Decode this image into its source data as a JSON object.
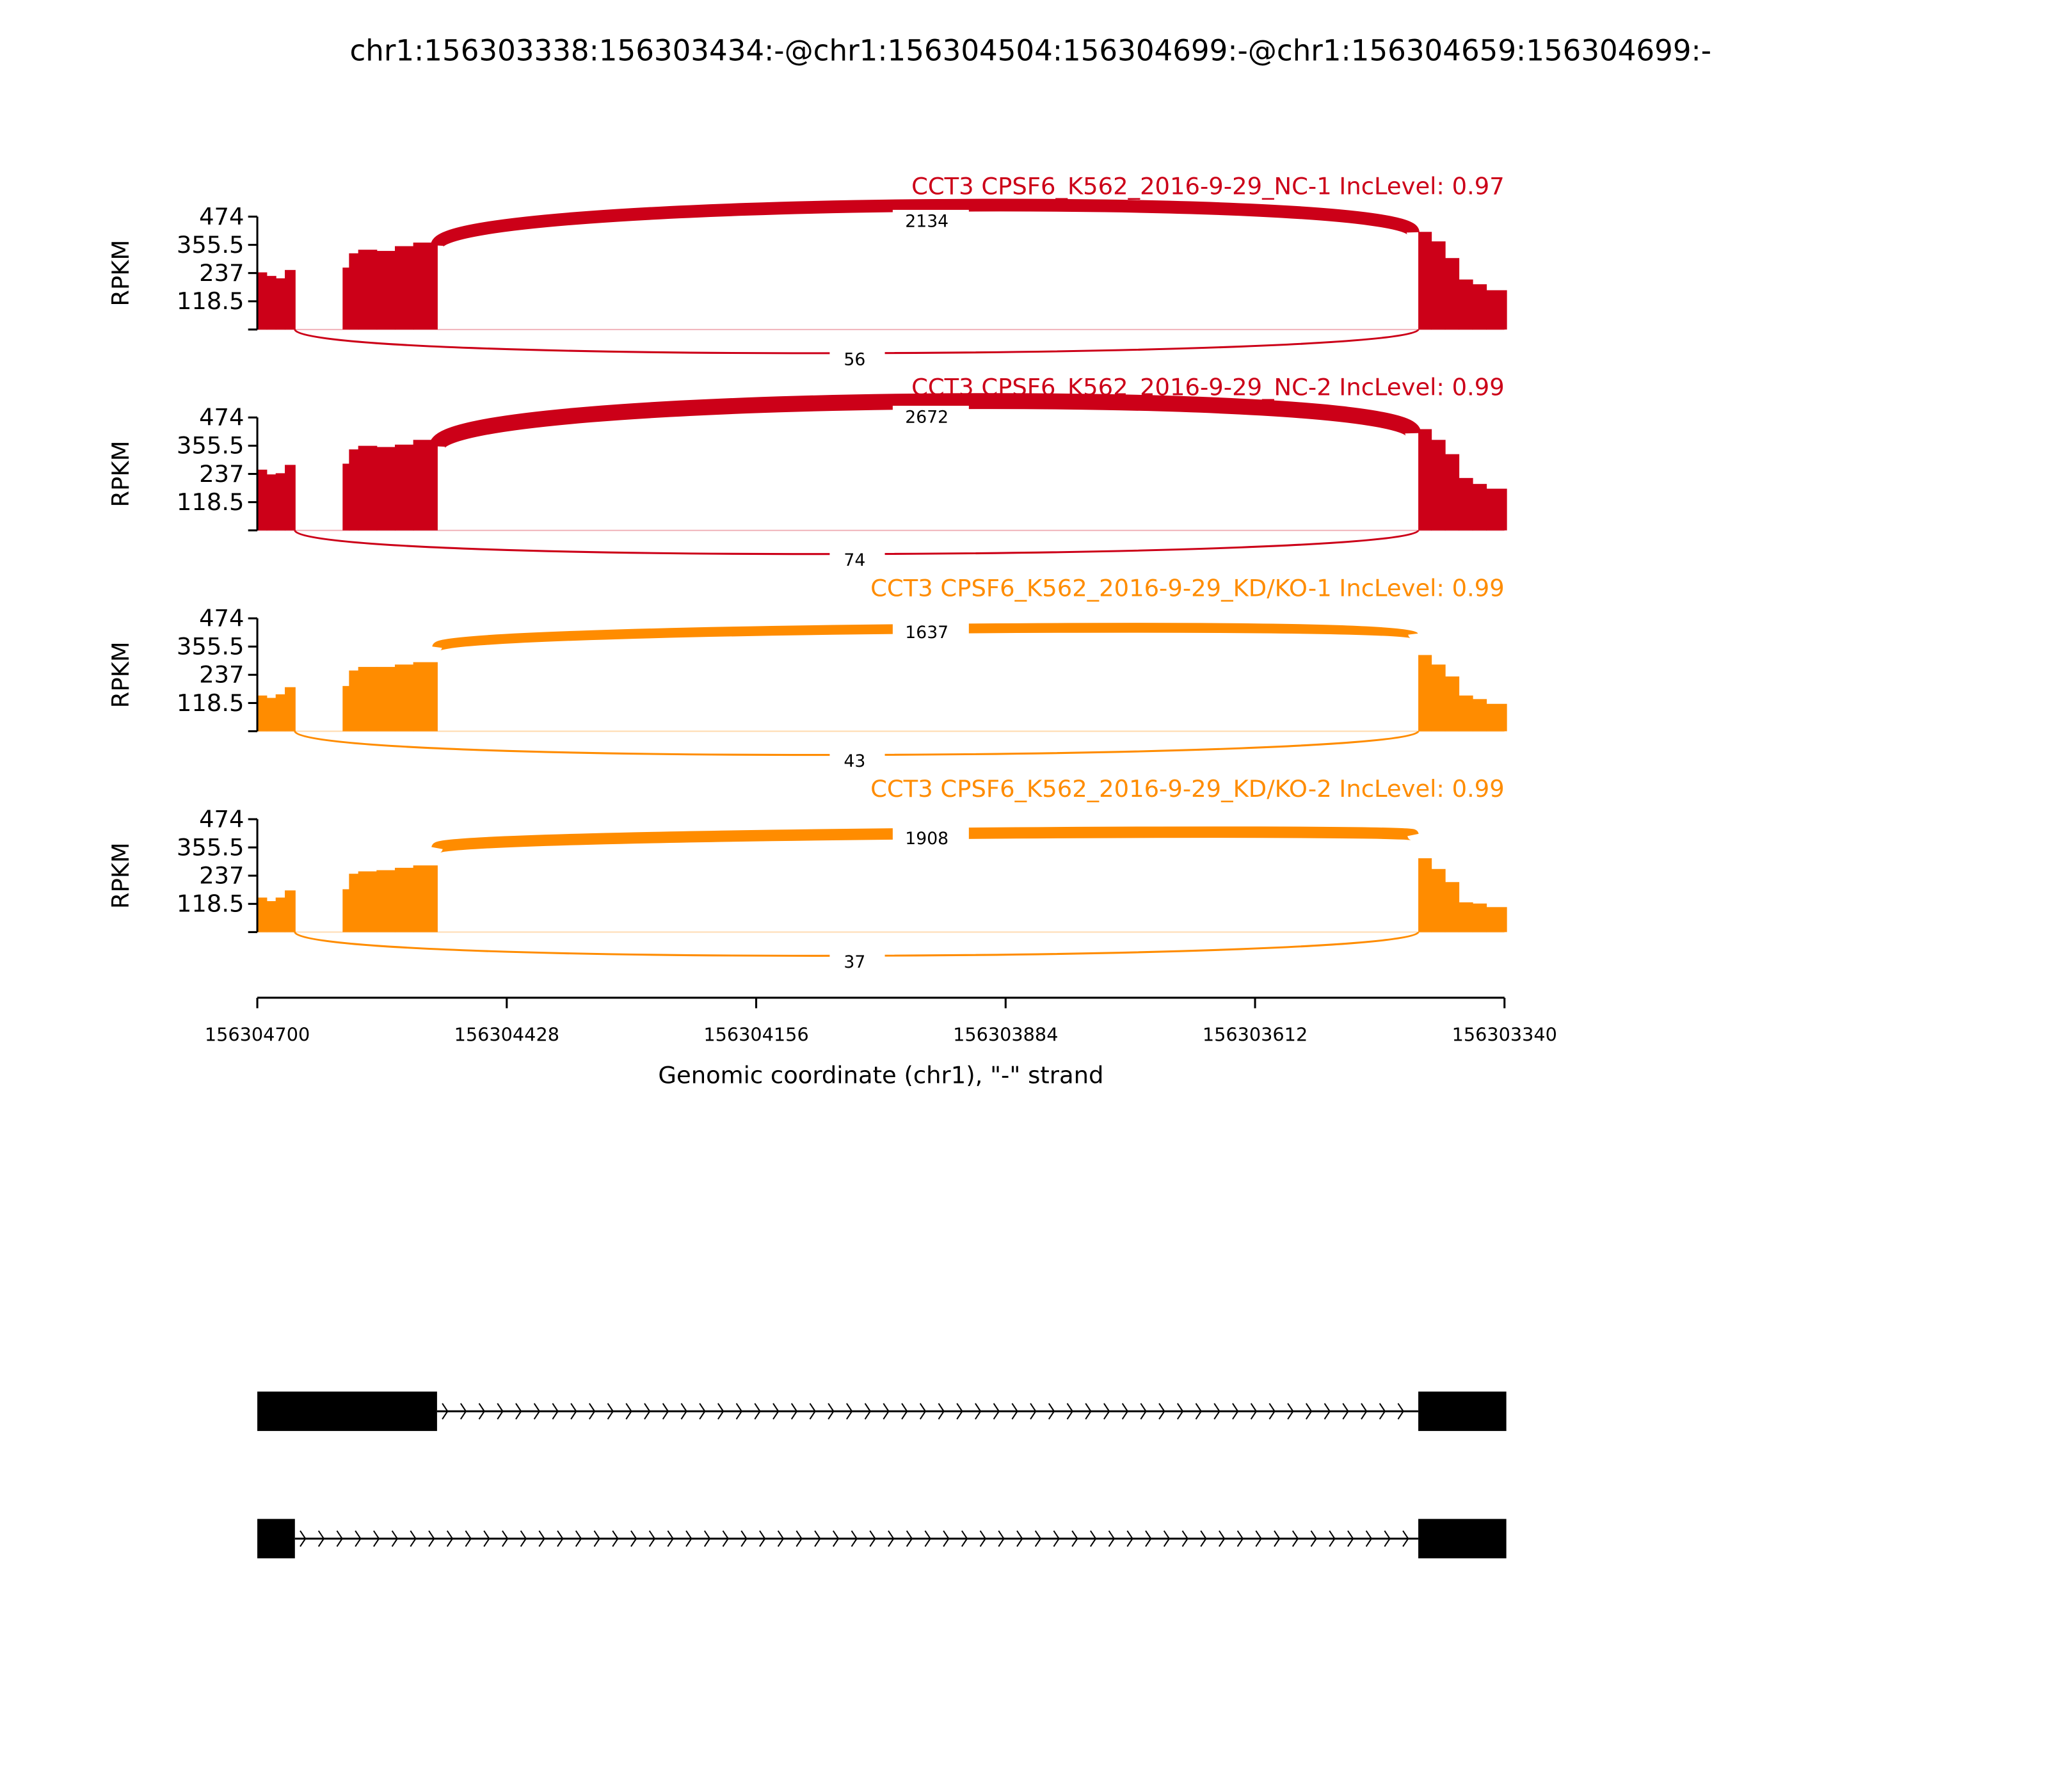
{
  "title": "chr1:156303338:156303434:-@chr1:156304504:156304699:-@chr1:156304659:156304699:-",
  "colors": {
    "nc": "#cc0018",
    "kd": "#ff8c00",
    "gene": "#000000"
  },
  "chart_data": {
    "type": "area",
    "title": "chr1:156303338:156303434:-@chr1:156304504:156304699:-@chr1:156304659:156304699:-",
    "xlabel": "Genomic coordinate (chr1), \"-\" strand",
    "ylabel": "RPKM",
    "xlim": [
      156304700,
      156303340
    ],
    "ylim": [
      0,
      474
    ],
    "xticks": [
      "156304700",
      "156304428",
      "156304156",
      "156303884",
      "156303612",
      "156303340"
    ],
    "xtick_values": [
      156304700,
      156304428,
      156304156,
      156303884,
      156303612,
      156303340
    ],
    "yticks": [
      "474",
      "355.5",
      "237",
      "118.5"
    ],
    "ytick_values": [
      474,
      355.5,
      237,
      118.5,
      0
    ],
    "samples": [
      {
        "label": "CCT3 CPSF6_K562_2016-9-29_NC-1 IncLevel: 0.97",
        "group": "nc",
        "inclusion_junction_reads": "2134",
        "skipping_junction_reads": "56",
        "coverage": [
          [
            156304700,
            156304690,
            240
          ],
          [
            156304690,
            156304680,
            225
          ],
          [
            156304680,
            156304670,
            215
          ],
          [
            156304670,
            156304659,
            250
          ],
          [
            156304607,
            156304600,
            260
          ],
          [
            156304600,
            156304590,
            320
          ],
          [
            156304590,
            156304570,
            335
          ],
          [
            156304570,
            156304550,
            330
          ],
          [
            156304550,
            156304530,
            350
          ],
          [
            156304530,
            156304504,
            365
          ],
          [
            156303434,
            156303420,
            410
          ],
          [
            156303420,
            156303405,
            370
          ],
          [
            156303405,
            156303390,
            300
          ],
          [
            156303390,
            156303375,
            210
          ],
          [
            156303375,
            156303360,
            190
          ],
          [
            156303360,
            156303338,
            165
          ]
        ]
      },
      {
        "label": "CCT3 CPSF6_K562_2016-9-29_NC-2 IncLevel: 0.99",
        "group": "nc",
        "inclusion_junction_reads": "2672",
        "skipping_junction_reads": "74",
        "coverage": [
          [
            156304700,
            156304690,
            255
          ],
          [
            156304690,
            156304680,
            235
          ],
          [
            156304680,
            156304670,
            240
          ],
          [
            156304670,
            156304659,
            275
          ],
          [
            156304607,
            156304600,
            280
          ],
          [
            156304600,
            156304590,
            340
          ],
          [
            156304590,
            156304570,
            355
          ],
          [
            156304570,
            156304550,
            350
          ],
          [
            156304550,
            156304530,
            360
          ],
          [
            156304530,
            156304504,
            380
          ],
          [
            156303434,
            156303420,
            425
          ],
          [
            156303420,
            156303405,
            380
          ],
          [
            156303405,
            156303390,
            320
          ],
          [
            156303390,
            156303375,
            220
          ],
          [
            156303375,
            156303360,
            195
          ],
          [
            156303360,
            156303338,
            175
          ]
        ]
      },
      {
        "label": "CCT3 CPSF6_K562_2016-9-29_KD/KO-1 IncLevel: 0.99",
        "group": "kd",
        "inclusion_junction_reads": "1637",
        "skipping_junction_reads": "43",
        "coverage": [
          [
            156304700,
            156304690,
            150
          ],
          [
            156304690,
            156304680,
            140
          ],
          [
            156304680,
            156304670,
            155
          ],
          [
            156304670,
            156304659,
            185
          ],
          [
            156304607,
            156304600,
            190
          ],
          [
            156304600,
            156304590,
            255
          ],
          [
            156304590,
            156304570,
            270
          ],
          [
            156304570,
            156304550,
            270
          ],
          [
            156304550,
            156304530,
            280
          ],
          [
            156304530,
            156304504,
            290
          ],
          [
            156303434,
            156303420,
            320
          ],
          [
            156303420,
            156303405,
            280
          ],
          [
            156303405,
            156303390,
            230
          ],
          [
            156303390,
            156303375,
            150
          ],
          [
            156303375,
            156303360,
            135
          ],
          [
            156303360,
            156303338,
            115
          ]
        ]
      },
      {
        "label": "CCT3 CPSF6_K562_2016-9-29_KD/KO-2 IncLevel: 0.99",
        "group": "kd",
        "inclusion_junction_reads": "1908",
        "skipping_junction_reads": "37",
        "coverage": [
          [
            156304700,
            156304690,
            145
          ],
          [
            156304690,
            156304680,
            130
          ],
          [
            156304680,
            156304670,
            145
          ],
          [
            156304670,
            156304659,
            175
          ],
          [
            156304607,
            156304600,
            180
          ],
          [
            156304600,
            156304590,
            245
          ],
          [
            156304590,
            156304570,
            255
          ],
          [
            156304570,
            156304550,
            260
          ],
          [
            156304550,
            156304530,
            270
          ],
          [
            156304530,
            156304504,
            280
          ],
          [
            156303434,
            156303420,
            310
          ],
          [
            156303420,
            156303405,
            265
          ],
          [
            156303405,
            156303390,
            210
          ],
          [
            156303390,
            156303375,
            125
          ],
          [
            156303375,
            156303360,
            120
          ],
          [
            156303360,
            156303338,
            105
          ]
        ]
      }
    ],
    "transcripts": [
      {
        "exons": [
          [
            156304700,
            156304504
          ],
          [
            156303434,
            156303338
          ]
        ]
      },
      {
        "exons": [
          [
            156304700,
            156304659
          ],
          [
            156303434,
            156303338
          ]
        ]
      }
    ]
  }
}
